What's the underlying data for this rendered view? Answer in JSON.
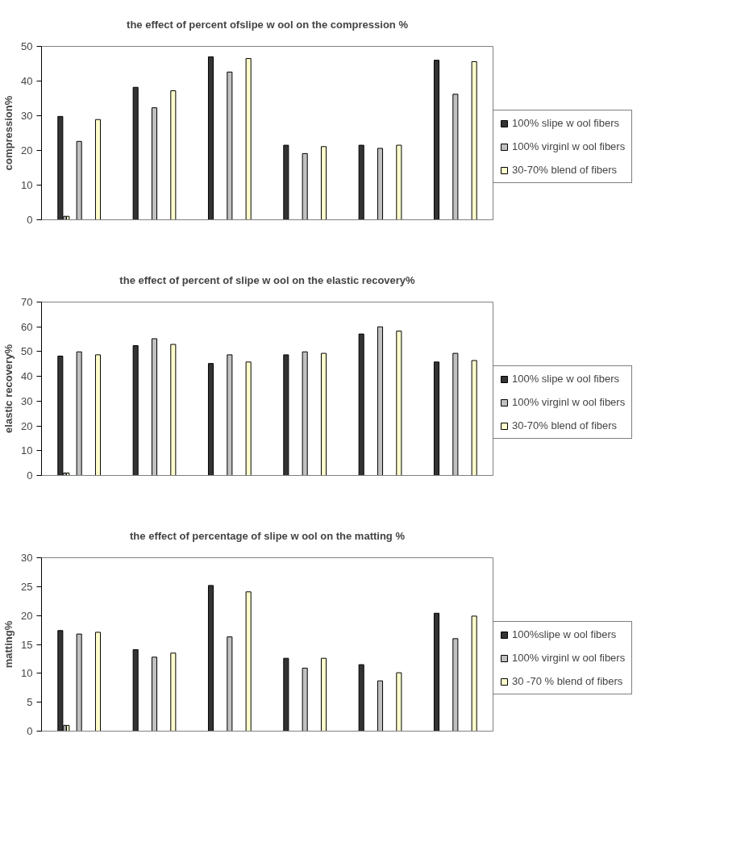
{
  "chart_data": [
    {
      "type": "bar",
      "title": "the effect of percent ofslipe w ool on the compression %",
      "ylabel": "compression%",
      "categories": [
        null,
        null,
        null,
        null,
        null,
        null
      ],
      "ylim": [
        0,
        50
      ],
      "yticks": [
        0,
        10,
        20,
        30,
        40,
        50
      ],
      "grid": false,
      "legend": "right",
      "tick_labels": "y",
      "series": [
        {
          "name": "100% slipe w ool fibers",
          "color": "#333333",
          "values": [
            29.8,
            38.2,
            47.0,
            21.5,
            21.5,
            46.0
          ]
        },
        {
          "name": "100% virginl w ool fibers",
          "color": "#c0c0c0",
          "values": [
            22.6,
            32.3,
            42.6,
            19.1,
            20.6,
            36.2
          ]
        },
        {
          "name": "30-70% blend of fibers",
          "color": "#ffffcc",
          "values": [
            28.9,
            37.2,
            46.5,
            21.1,
            21.5,
            45.6
          ]
        },
        {
          "color": "#c0c0c0",
          "values": [
            1,
            null,
            null,
            null,
            null,
            null
          ]
        },
        {
          "color": "#ffffcc",
          "values": [
            1,
            null,
            null,
            null,
            null,
            null
          ]
        }
      ]
    },
    {
      "type": "bar",
      "title": "the effect of percent of slipe w ool on the elastic recovery%",
      "ylabel": "elastic recovery%",
      "categories": [
        null,
        null,
        null,
        null,
        null,
        null
      ],
      "ylim": [
        0,
        70
      ],
      "yticks": [
        0,
        10,
        20,
        30,
        40,
        50,
        60,
        70
      ],
      "grid": false,
      "legend": "right",
      "tick_labels": "y",
      "series": [
        {
          "name": "100% slipe w ool fibers",
          "color": "#333333",
          "values": [
            48.2,
            52.4,
            45.2,
            48.7,
            57.1,
            45.8
          ]
        },
        {
          "name": "100% virginl w ool fibers",
          "color": "#c0c0c0",
          "values": [
            49.9,
            55.2,
            48.7,
            49.9,
            60.0,
            49.3
          ]
        },
        {
          "name": "30-70% blend of fibers",
          "color": "#ffffcc",
          "values": [
            48.7,
            52.9,
            45.8,
            49.3,
            58.3,
            46.4
          ]
        },
        {
          "color": "#c0c0c0",
          "values": [
            1,
            null,
            null,
            null,
            null,
            null
          ]
        },
        {
          "color": "#ffffcc",
          "values": [
            1,
            null,
            null,
            null,
            null,
            null
          ]
        }
      ]
    },
    {
      "type": "bar",
      "title": "the effect of percentage of slipe w ool on the matting %",
      "ylabel": "matting%",
      "categories": [
        null,
        null,
        null,
        null,
        null,
        null
      ],
      "ylim": [
        0,
        30
      ],
      "yticks": [
        0,
        5,
        10,
        15,
        20,
        25,
        30
      ],
      "grid": false,
      "legend": "right",
      "tick_labels": "y",
      "series": [
        {
          "name": "100%slipe w ool fibers",
          "color": "#333333",
          "values": [
            17.4,
            14.1,
            25.2,
            12.6,
            11.5,
            20.4
          ]
        },
        {
          "name": "100% virginl w ool fibers",
          "color": "#c0c0c0",
          "values": [
            16.8,
            12.8,
            16.3,
            10.9,
            8.7,
            16.0
          ]
        },
        {
          "name": "30 -70 % blend of fibers",
          "color": "#ffffcc",
          "values": [
            17.1,
            13.5,
            24.1,
            12.6,
            10.1,
            19.9
          ]
        },
        {
          "color": "#c0c0c0",
          "values": [
            1,
            null,
            null,
            null,
            null,
            null
          ]
        },
        {
          "color": "#ffffcc",
          "values": [
            1,
            null,
            null,
            null,
            null,
            null
          ]
        }
      ]
    }
  ]
}
